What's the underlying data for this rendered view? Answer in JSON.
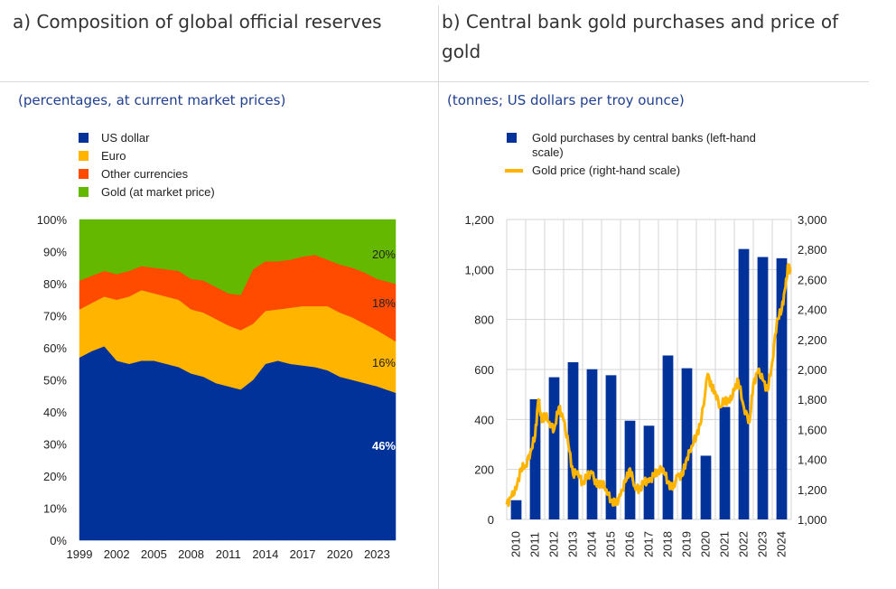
{
  "panel_a": {
    "title": "a) Composition of global official reserves",
    "subtitle": "(percentages, at current market prices)"
  },
  "panel_b": {
    "title": "b) Central bank gold purchases and price of gold",
    "subtitle": "(tonnes; US dollars per troy ounce)"
  },
  "colors": {
    "us_dollar": "#003299",
    "euro": "#ffb400",
    "other": "#ff4b00",
    "gold": "#65b800",
    "gold_price_line": "#ffb400",
    "bars": "#003299"
  },
  "chart_data": [
    {
      "type": "area",
      "stacked": true,
      "title": "a) Composition of global official reserves",
      "subtitle": "(percentages, at current market prices)",
      "x": [
        1999,
        2000,
        2001,
        2002,
        2003,
        2004,
        2005,
        2006,
        2007,
        2008,
        2009,
        2010,
        2011,
        2012,
        2013,
        2014,
        2015,
        2016,
        2017,
        2018,
        2019,
        2020,
        2021,
        2022,
        2023,
        2024
      ],
      "x_ticks": [
        "1999",
        "2002",
        "2005",
        "2008",
        "2011",
        "2014",
        "2017",
        "2020",
        "2023"
      ],
      "ylim": [
        0,
        100
      ],
      "y_ticks": [
        "0%",
        "10%",
        "20%",
        "30%",
        "40%",
        "50%",
        "60%",
        "70%",
        "80%",
        "90%",
        "100%"
      ],
      "series": [
        {
          "name": "US dollar",
          "values": [
            57,
            59,
            60.5,
            56,
            55,
            56,
            56,
            55,
            54,
            52,
            51,
            49,
            48,
            47,
            50,
            55,
            56,
            55,
            54.5,
            54,
            53,
            51,
            50,
            49,
            48,
            46
          ]
        },
        {
          "name": "Euro",
          "values": [
            15,
            15,
            15.5,
            19,
            21,
            22,
            21,
            21,
            21,
            20,
            20,
            20,
            19,
            18.5,
            17.5,
            16.5,
            16,
            17.5,
            18.5,
            19,
            20,
            20,
            19.5,
            18.5,
            17.5,
            16
          ]
        },
        {
          "name": "Other currencies",
          "values": [
            9,
            8.5,
            8,
            8,
            8,
            7.5,
            8,
            8.5,
            9,
            9.5,
            10,
            10,
            10,
            11,
            17,
            15.5,
            15,
            15,
            15.5,
            16,
            14.5,
            15,
            15.5,
            16,
            16,
            18
          ]
        },
        {
          "name": "Gold (at market price)",
          "values": [
            19,
            17.5,
            16,
            17,
            16,
            14.5,
            15,
            15.5,
            16,
            18.5,
            19,
            21,
            23,
            23.5,
            15.5,
            13,
            13,
            12.5,
            11.5,
            11,
            12.5,
            14,
            15,
            16.5,
            18.5,
            20
          ]
        }
      ],
      "annotations": [
        "20%",
        "18%",
        "16%",
        "46%"
      ]
    },
    {
      "type": "bar+line",
      "title": "b) Central bank gold purchases and price of gold",
      "subtitle": "(tonnes; US dollars per troy ounce)",
      "categories": [
        "2010",
        "2011",
        "2012",
        "2013",
        "2014",
        "2015",
        "2016",
        "2017",
        "2018",
        "2019",
        "2020",
        "2021",
        "2022",
        "2023",
        "2024"
      ],
      "y_left_lim": [
        0,
        1200
      ],
      "y_left_ticks": [
        "0",
        "200",
        "400",
        "600",
        "800",
        "1,000",
        "1,200"
      ],
      "y_right_lim": [
        1000,
        3000
      ],
      "y_right_ticks": [
        "1,000",
        "1,200",
        "1,400",
        "1,600",
        "1,800",
        "2,000",
        "2,200",
        "2,400",
        "2,600",
        "2,800",
        "3,000"
      ],
      "series": [
        {
          "name": "Gold purchases by central banks (left-hand scale)",
          "type": "bar",
          "values": [
            77,
            481,
            569,
            629,
            601,
            577,
            395,
            375,
            656,
            605,
            255,
            450,
            1082,
            1050,
            1045
          ]
        },
        {
          "name": "Gold price (right-hand scale)",
          "type": "line",
          "x": [
            2010.0,
            2010.25,
            2010.5,
            2010.75,
            2011.0,
            2011.25,
            2011.5,
            2011.67,
            2011.85,
            2012.0,
            2012.25,
            2012.5,
            2012.75,
            2013.0,
            2013.25,
            2013.5,
            2013.75,
            2014.0,
            2014.25,
            2014.5,
            2014.75,
            2015.0,
            2015.25,
            2015.5,
            2015.75,
            2016.0,
            2016.25,
            2016.5,
            2016.75,
            2017.0,
            2017.25,
            2017.5,
            2017.75,
            2018.0,
            2018.25,
            2018.5,
            2018.75,
            2019.0,
            2019.25,
            2019.5,
            2019.75,
            2020.0,
            2020.25,
            2020.6,
            2020.8,
            2021.0,
            2021.25,
            2021.5,
            2021.75,
            2022.0,
            2022.2,
            2022.5,
            2022.8,
            2023.0,
            2023.25,
            2023.5,
            2023.75,
            2024.0,
            2024.25,
            2024.5,
            2024.7,
            2024.85,
            2024.95
          ],
          "values": [
            1100,
            1150,
            1200,
            1340,
            1360,
            1450,
            1560,
            1800,
            1650,
            1700,
            1650,
            1600,
            1750,
            1660,
            1500,
            1300,
            1320,
            1240,
            1290,
            1310,
            1220,
            1250,
            1200,
            1130,
            1100,
            1160,
            1250,
            1340,
            1220,
            1200,
            1250,
            1250,
            1290,
            1330,
            1340,
            1250,
            1200,
            1290,
            1290,
            1410,
            1490,
            1560,
            1650,
            1970,
            1880,
            1850,
            1750,
            1800,
            1780,
            1860,
            1930,
            1750,
            1650,
            1900,
            1990,
            1930,
            1860,
            2050,
            2330,
            2400,
            2550,
            2700,
            2650
          ]
        }
      ]
    }
  ],
  "legend_a": [
    "US dollar",
    "Euro",
    "Other currencies",
    "Gold (at market price)"
  ],
  "legend_b": [
    "Gold purchases by central banks (left-hand",
    "scale)",
    "Gold price (right-hand scale)"
  ]
}
